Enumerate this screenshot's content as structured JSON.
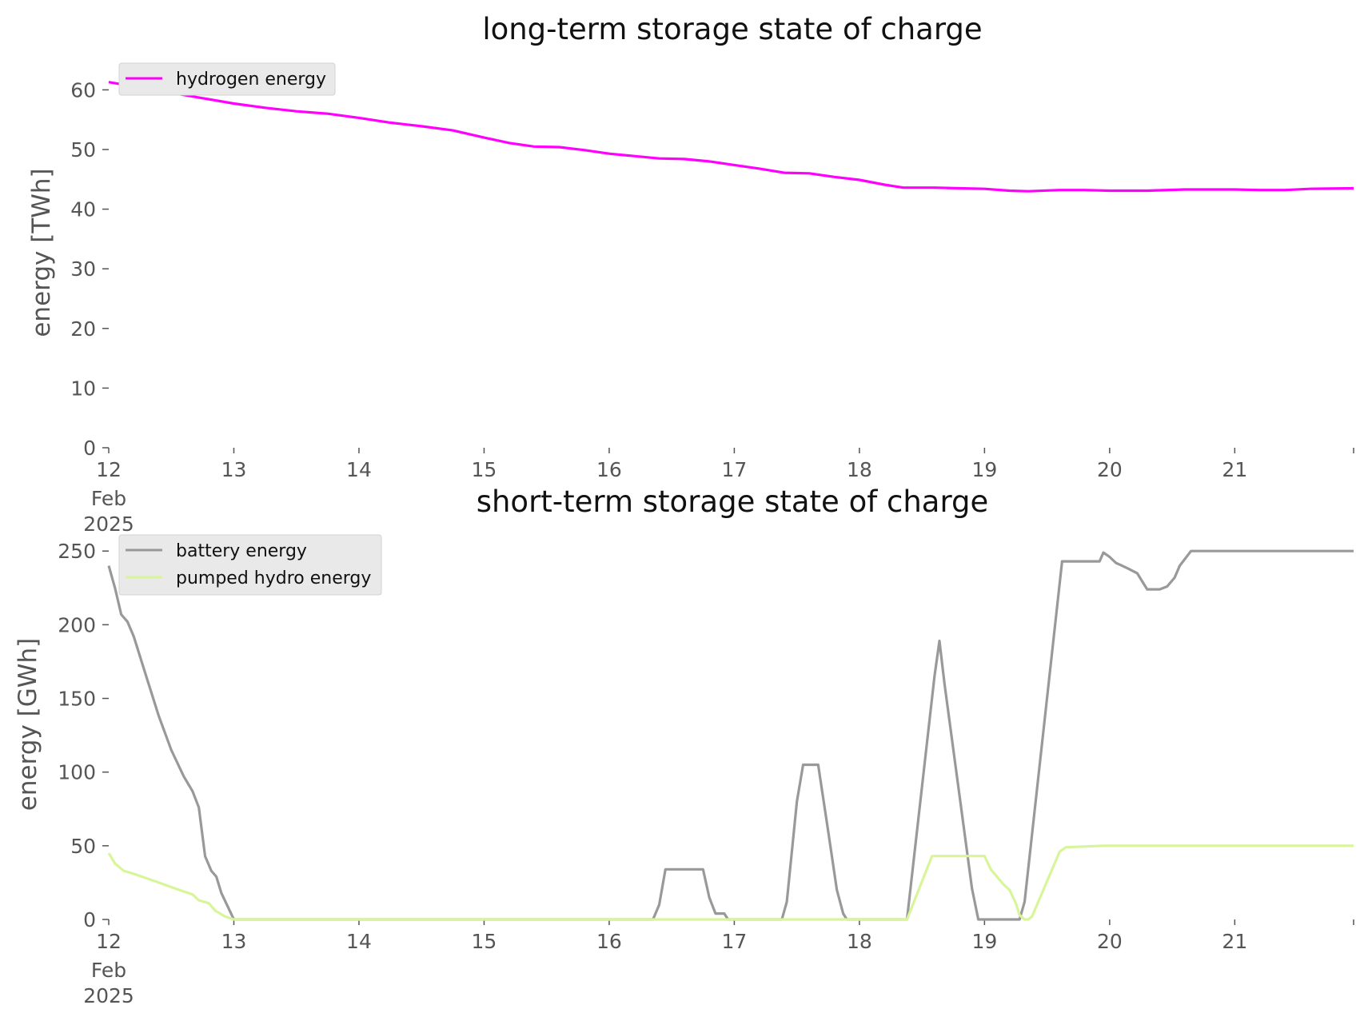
{
  "chart_data": [
    {
      "type": "line",
      "title": "long-term storage state of charge",
      "xlabel": "",
      "ylabel": "energy [TWh]",
      "ylim": [
        0,
        63
      ],
      "xlim": [
        12,
        21.95
      ],
      "x_ticks": [
        {
          "value": 12,
          "label": "12",
          "sublabels": [
            "Feb",
            "2025"
          ]
        },
        {
          "value": 13,
          "label": "13"
        },
        {
          "value": 14,
          "label": "14"
        },
        {
          "value": 15,
          "label": "15"
        },
        {
          "value": 16,
          "label": "16"
        },
        {
          "value": 17,
          "label": "17"
        },
        {
          "value": 18,
          "label": "18"
        },
        {
          "value": 19,
          "label": "19"
        },
        {
          "value": 20,
          "label": "20"
        },
        {
          "value": 21,
          "label": "21"
        }
      ],
      "y_ticks": [
        0,
        10,
        20,
        30,
        40,
        50,
        60
      ],
      "grid": false,
      "legend": "top-left",
      "series": [
        {
          "name": "hydrogen energy",
          "color": "#ff00ff",
          "x": [
            12,
            12.25,
            12.5,
            12.75,
            13,
            13.25,
            13.5,
            13.75,
            14,
            14.25,
            14.5,
            14.75,
            15,
            15.2,
            15.4,
            15.6,
            15.8,
            16,
            16.2,
            16.4,
            16.6,
            16.8,
            17,
            17.2,
            17.4,
            17.6,
            17.8,
            18,
            18.2,
            18.35,
            18.6,
            18.8,
            19,
            19.2,
            19.35,
            19.6,
            19.8,
            20,
            20.3,
            20.6,
            20.8,
            21,
            21.2,
            21.4,
            21.6,
            21.95
          ],
          "values": [
            61.3,
            60.4,
            59.5,
            58.6,
            57.7,
            57,
            56.4,
            56,
            55.3,
            54.5,
            53.9,
            53.2,
            52,
            51.1,
            50.5,
            50.4,
            49.9,
            49.3,
            48.9,
            48.5,
            48.4,
            48,
            47.4,
            46.8,
            46.1,
            46,
            45.4,
            44.9,
            44.1,
            43.6,
            43.6,
            43.5,
            43.4,
            43.1,
            43.0,
            43.2,
            43.2,
            43.1,
            43.1,
            43.3,
            43.3,
            43.3,
            43.2,
            43.2,
            43.4,
            43.5
          ]
        }
      ]
    },
    {
      "type": "line",
      "title": "short-term storage state of charge",
      "xlabel": "",
      "ylabel": "energy [GWh]",
      "ylim": [
        0,
        255
      ],
      "xlim": [
        12,
        21.95
      ],
      "x_ticks": [
        {
          "value": 12,
          "label": "12",
          "sublabels": [
            "Feb",
            "2025"
          ]
        },
        {
          "value": 13,
          "label": "13"
        },
        {
          "value": 14,
          "label": "14"
        },
        {
          "value": 15,
          "label": "15"
        },
        {
          "value": 16,
          "label": "16"
        },
        {
          "value": 17,
          "label": "17"
        },
        {
          "value": 18,
          "label": "18"
        },
        {
          "value": 19,
          "label": "19"
        },
        {
          "value": 20,
          "label": "20"
        },
        {
          "value": 21,
          "label": "21"
        }
      ],
      "y_ticks": [
        0,
        50,
        100,
        150,
        200,
        250
      ],
      "grid": false,
      "legend": "top-left",
      "series": [
        {
          "name": "battery energy",
          "color": "#999999",
          "x": [
            12,
            12.05,
            12.1,
            12.15,
            12.2,
            12.3,
            12.4,
            12.5,
            12.6,
            12.67,
            12.72,
            12.77,
            12.82,
            12.86,
            12.9,
            13,
            16.35,
            16.4,
            16.45,
            16.75,
            16.8,
            16.85,
            16.92,
            16.95,
            17.38,
            17.42,
            17.5,
            17.55,
            17.67,
            17.75,
            17.82,
            17.87,
            17.9,
            18.38,
            18.6,
            18.64,
            18.68,
            18.9,
            18.95,
            19.22,
            19.28,
            19.32,
            19.62,
            19.92,
            19.95,
            20,
            20.05,
            20.1,
            20.15,
            20.22,
            20.3,
            20.4,
            20.46,
            20.52,
            20.56,
            20.65,
            21.95
          ],
          "values": [
            240,
            225,
            207,
            202,
            192,
            165,
            138,
            115,
            97,
            87,
            76,
            43,
            33,
            29,
            18,
            0,
            0,
            10,
            34,
            34,
            15,
            4,
            4,
            0,
            0,
            12,
            80,
            105,
            105,
            60,
            20,
            4,
            0,
            0,
            165,
            189,
            160,
            21,
            0,
            0,
            0,
            12,
            243,
            243,
            249,
            246,
            242,
            240,
            238,
            235,
            224,
            224,
            226,
            232,
            240,
            250,
            250
          ]
        },
        {
          "name": "pumped hydro energy",
          "color": "#d8f59a",
          "x": [
            12,
            12.05,
            12.12,
            12.2,
            12.3,
            12.4,
            12.5,
            12.6,
            12.67,
            12.72,
            12.8,
            12.85,
            12.93,
            13,
            18.38,
            18.58,
            19,
            19.05,
            19.15,
            19.2,
            19.25,
            19.28,
            19.32,
            19.35,
            19.38,
            19.6,
            19.65,
            19.95,
            21.95
          ],
          "values": [
            45,
            38,
            33,
            31,
            28,
            25,
            22,
            19,
            17,
            13,
            11,
            6,
            2,
            0,
            0,
            43,
            43,
            34,
            24,
            20,
            11,
            3,
            0,
            0,
            2,
            46,
            49,
            50,
            50
          ]
        }
      ]
    }
  ]
}
